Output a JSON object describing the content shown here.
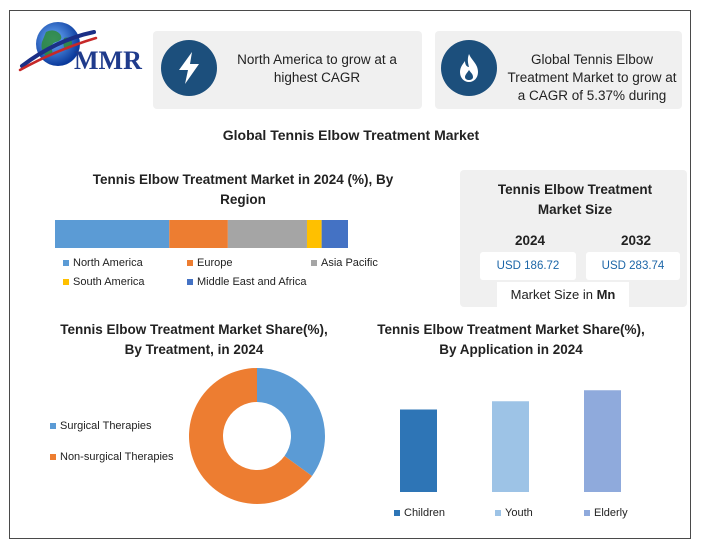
{
  "logo": {
    "text": "MMR"
  },
  "cards": [
    {
      "icon": "lightning-icon",
      "text": "North America to grow at a highest CAGR"
    },
    {
      "icon": "flame-icon",
      "text": "Global Tennis Elbow Treatment Market to grow at a CAGR of 5.37% during"
    }
  ],
  "main_title": "Global Tennis Elbow Treatment Market",
  "market_size": {
    "title": "Tennis Elbow Treatment Market Size",
    "years": [
      "2024",
      "2032"
    ],
    "values": [
      "USD 186.72",
      "USD 283.74"
    ],
    "unit_prefix": "Market Size in ",
    "unit_bold": "Mn"
  },
  "chart_data": [
    {
      "type": "bar",
      "orientation": "horizontal-stacked",
      "title": "Tennis Elbow Treatment Market in 2024 (%), By Region",
      "series": [
        {
          "name": "North America",
          "value": 39,
          "color": "#5b9bd5"
        },
        {
          "name": "Europe",
          "value": 20,
          "color": "#ed7d31"
        },
        {
          "name": "Asia Pacific",
          "value": 27,
          "color": "#a5a5a5"
        },
        {
          "name": "South America",
          "value": 5,
          "color": "#ffc000"
        },
        {
          "name": "Middle East and Africa",
          "value": 9,
          "color": "#4472c4"
        }
      ]
    },
    {
      "type": "pie",
      "variant": "donut",
      "title": "Tennis Elbow Treatment Market Share(%), By Treatment, in 2024",
      "series": [
        {
          "name": "Surgical Therapies",
          "value": 35,
          "color": "#5b9bd5"
        },
        {
          "name": "Non-surgical Therapies",
          "value": 65,
          "color": "#ed7d31"
        }
      ]
    },
    {
      "type": "bar",
      "title": "Tennis Elbow Treatment Market Share(%), By Application in 2024",
      "categories": [
        "Children",
        "Youth",
        "Elderly"
      ],
      "values": [
        30,
        33,
        37
      ],
      "colors": [
        "#2e75b6",
        "#9dc3e6",
        "#8faadc"
      ],
      "ylim": [
        0,
        40
      ]
    }
  ]
}
